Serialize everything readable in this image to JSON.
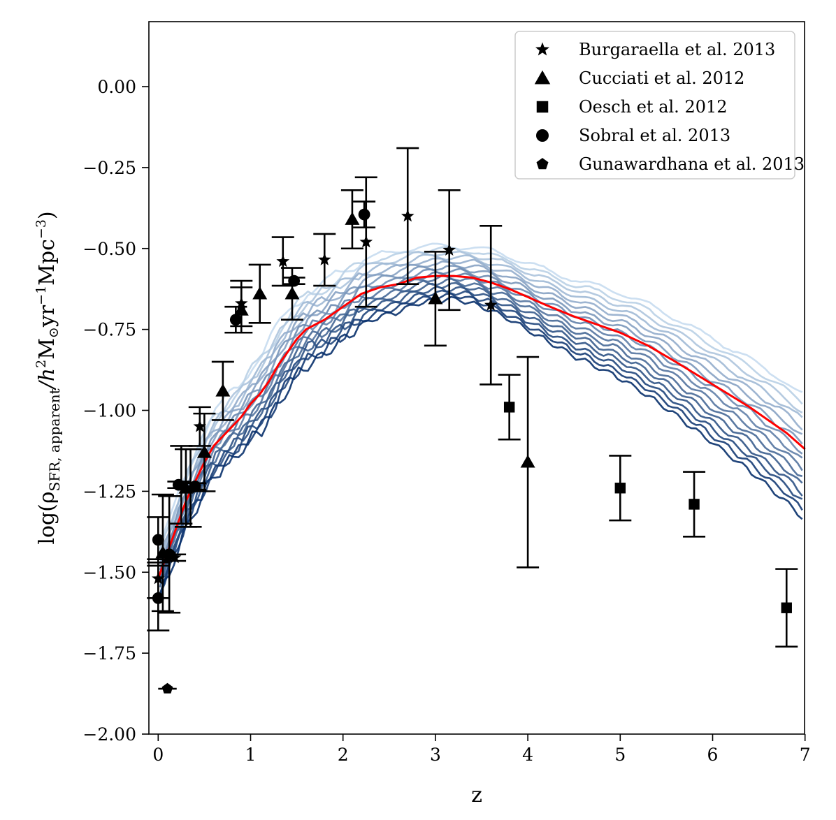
{
  "chart_data": {
    "type": "scatter",
    "title": "",
    "xlabel": "z",
    "ylabel": {
      "main": "log(ρ",
      "subscript": "SFR, apparent",
      "unit_prefix": "/h",
      "unit_mass": "M",
      "unit_mass_sub": "⊙",
      "unit_yr": "yr",
      "unit_mpc": "Mpc",
      "close": ")",
      "exp2": "2",
      "expm1": "−1",
      "expm3": "−3"
    },
    "xlim": [
      -0.1,
      7
    ],
    "ylim": [
      -2.0,
      0.2
    ],
    "x_ticks": [
      {
        "value": 0,
        "label": "0"
      },
      {
        "value": 1,
        "label": "1"
      },
      {
        "value": 2,
        "label": "2"
      },
      {
        "value": 3,
        "label": "3"
      },
      {
        "value": 4,
        "label": "4"
      },
      {
        "value": 5,
        "label": "5"
      },
      {
        "value": 6,
        "label": "6"
      },
      {
        "value": 7,
        "label": "7"
      }
    ],
    "y_ticks": [
      {
        "value": 0.0,
        "label": "0.00"
      },
      {
        "value": -0.25,
        "label": "−0.25"
      },
      {
        "value": -0.5,
        "label": "−0.50"
      },
      {
        "value": -0.75,
        "label": "−0.75"
      },
      {
        "value": -1.0,
        "label": "−1.00"
      },
      {
        "value": -1.25,
        "label": "−1.25"
      },
      {
        "value": -1.5,
        "label": "−1.50"
      },
      {
        "value": -1.75,
        "label": "−1.75"
      },
      {
        "value": -2.0,
        "label": "−2.00"
      }
    ],
    "grid": false,
    "legend_position": "top-right",
    "model_curves": {
      "color_range": [
        "#c6dbef",
        "#08306b"
      ],
      "count": 16,
      "description_params": {
        "peak_z_min": 2.8,
        "peak_z_max": 3.3
      }
    },
    "median_curve": {
      "color": "#ff0000",
      "points": [
        [
          0.0,
          -1.52
        ],
        [
          0.1,
          -1.44
        ],
        [
          0.2,
          -1.36
        ],
        [
          0.3,
          -1.28
        ],
        [
          0.4,
          -1.22
        ],
        [
          0.5,
          -1.16
        ],
        [
          0.6,
          -1.11
        ],
        [
          0.7,
          -1.08
        ],
        [
          0.8,
          -1.05
        ],
        [
          0.9,
          -1.02
        ],
        [
          1.0,
          -0.98
        ],
        [
          1.1,
          -0.95
        ],
        [
          1.2,
          -0.91
        ],
        [
          1.3,
          -0.86
        ],
        [
          1.4,
          -0.82
        ],
        [
          1.5,
          -0.78
        ],
        [
          1.6,
          -0.75
        ],
        [
          1.8,
          -0.72
        ],
        [
          2.0,
          -0.68
        ],
        [
          2.2,
          -0.64
        ],
        [
          2.4,
          -0.62
        ],
        [
          2.6,
          -0.61
        ],
        [
          2.8,
          -0.59
        ],
        [
          3.0,
          -0.585
        ],
        [
          3.2,
          -0.585
        ],
        [
          3.4,
          -0.59
        ],
        [
          3.6,
          -0.605
        ],
        [
          3.8,
          -0.625
        ],
        [
          4.0,
          -0.65
        ],
        [
          4.2,
          -0.675
        ],
        [
          4.5,
          -0.71
        ],
        [
          4.8,
          -0.74
        ],
        [
          5.0,
          -0.76
        ],
        [
          5.3,
          -0.8
        ],
        [
          5.6,
          -0.85
        ],
        [
          6.0,
          -0.92
        ],
        [
          6.4,
          -0.99
        ],
        [
          6.8,
          -1.07
        ],
        [
          7.0,
          -1.12
        ]
      ]
    },
    "series": [
      {
        "name": "Burgaraella et al. 2013",
        "marker": "star",
        "points": [
          {
            "x": 0.0,
            "y": -1.52,
            "err": 0.06
          },
          {
            "x": 0.25,
            "y": -1.23,
            "err": 0.12
          },
          {
            "x": 0.35,
            "y": -1.24,
            "err": 0.12
          },
          {
            "x": 0.45,
            "y": -1.05,
            "err": 0.06
          },
          {
            "x": 0.9,
            "y": -0.67,
            "err": 0.07
          },
          {
            "x": 1.35,
            "y": -0.54,
            "err": 0.075
          },
          {
            "x": 1.8,
            "y": -0.535,
            "err": 0.08
          },
          {
            "x": 2.25,
            "y": -0.48,
            "err": 0.2
          },
          {
            "x": 2.7,
            "y": -0.4,
            "err": 0.21
          },
          {
            "x": 3.15,
            "y": -0.505,
            "err": 0.185
          },
          {
            "x": 3.6,
            "y": -0.675,
            "err": 0.245
          }
        ]
      },
      {
        "name": "Cucciati et al. 2012",
        "marker": "triangle",
        "points": [
          {
            "x": 0.05,
            "y": -1.44,
            "err": 0.18
          },
          {
            "x": 0.3,
            "y": -1.24,
            "err": 0.12
          },
          {
            "x": 0.5,
            "y": -1.13,
            "err": 0.12
          },
          {
            "x": 0.7,
            "y": -0.94,
            "err": 0.09
          },
          {
            "x": 0.9,
            "y": -0.69,
            "err": 0.07
          },
          {
            "x": 1.1,
            "y": -0.64,
            "err": 0.09
          },
          {
            "x": 1.45,
            "y": -0.64,
            "err": 0.08
          },
          {
            "x": 2.1,
            "y": -0.41,
            "err": 0.09
          },
          {
            "x": 3.0,
            "y": -0.655,
            "err": 0.145
          },
          {
            "x": 4.0,
            "y": -1.16,
            "err": 0.325
          }
        ]
      },
      {
        "name": "Oesch et al. 2012",
        "marker": "square",
        "points": [
          {
            "x": 3.8,
            "y": -0.99,
            "err": 0.1
          },
          {
            "x": 5.0,
            "y": -1.24,
            "err": 0.1
          },
          {
            "x": 5.8,
            "y": -1.29,
            "err": 0.1
          },
          {
            "x": 6.8,
            "y": -1.61,
            "err": 0.12
          }
        ]
      },
      {
        "name": "Sobral et al. 2013",
        "marker": "circle",
        "points": [
          {
            "x": 0.0,
            "y": -1.58,
            "err": 0.1
          },
          {
            "x": 0.22,
            "y": -1.23,
            "err": 0.01
          },
          {
            "x": 0.4,
            "y": -1.235,
            "err": 0.01
          },
          {
            "x": 0.84,
            "y": -0.72,
            "err": 0.04
          },
          {
            "x": 1.47,
            "y": -0.6,
            "err": 0.01
          },
          {
            "x": 2.23,
            "y": -0.395,
            "err": 0.04
          }
        ]
      },
      {
        "name": "Gunawardhana et al. 2013",
        "marker": "pentagon",
        "points": [
          {
            "x": 0.1,
            "y": -1.86,
            "err": 0.0,
            "xerr": 0.1
          }
        ]
      }
    ],
    "extra_points": [
      {
        "x": 0.0,
        "y": -1.4,
        "err": 0.07,
        "marker": "circle"
      },
      {
        "x": 0.12,
        "y": -1.445,
        "err": 0.18,
        "marker": "circle"
      },
      {
        "x": 0.18,
        "y": -1.455,
        "err": 0.01,
        "marker": "star"
      }
    ]
  }
}
